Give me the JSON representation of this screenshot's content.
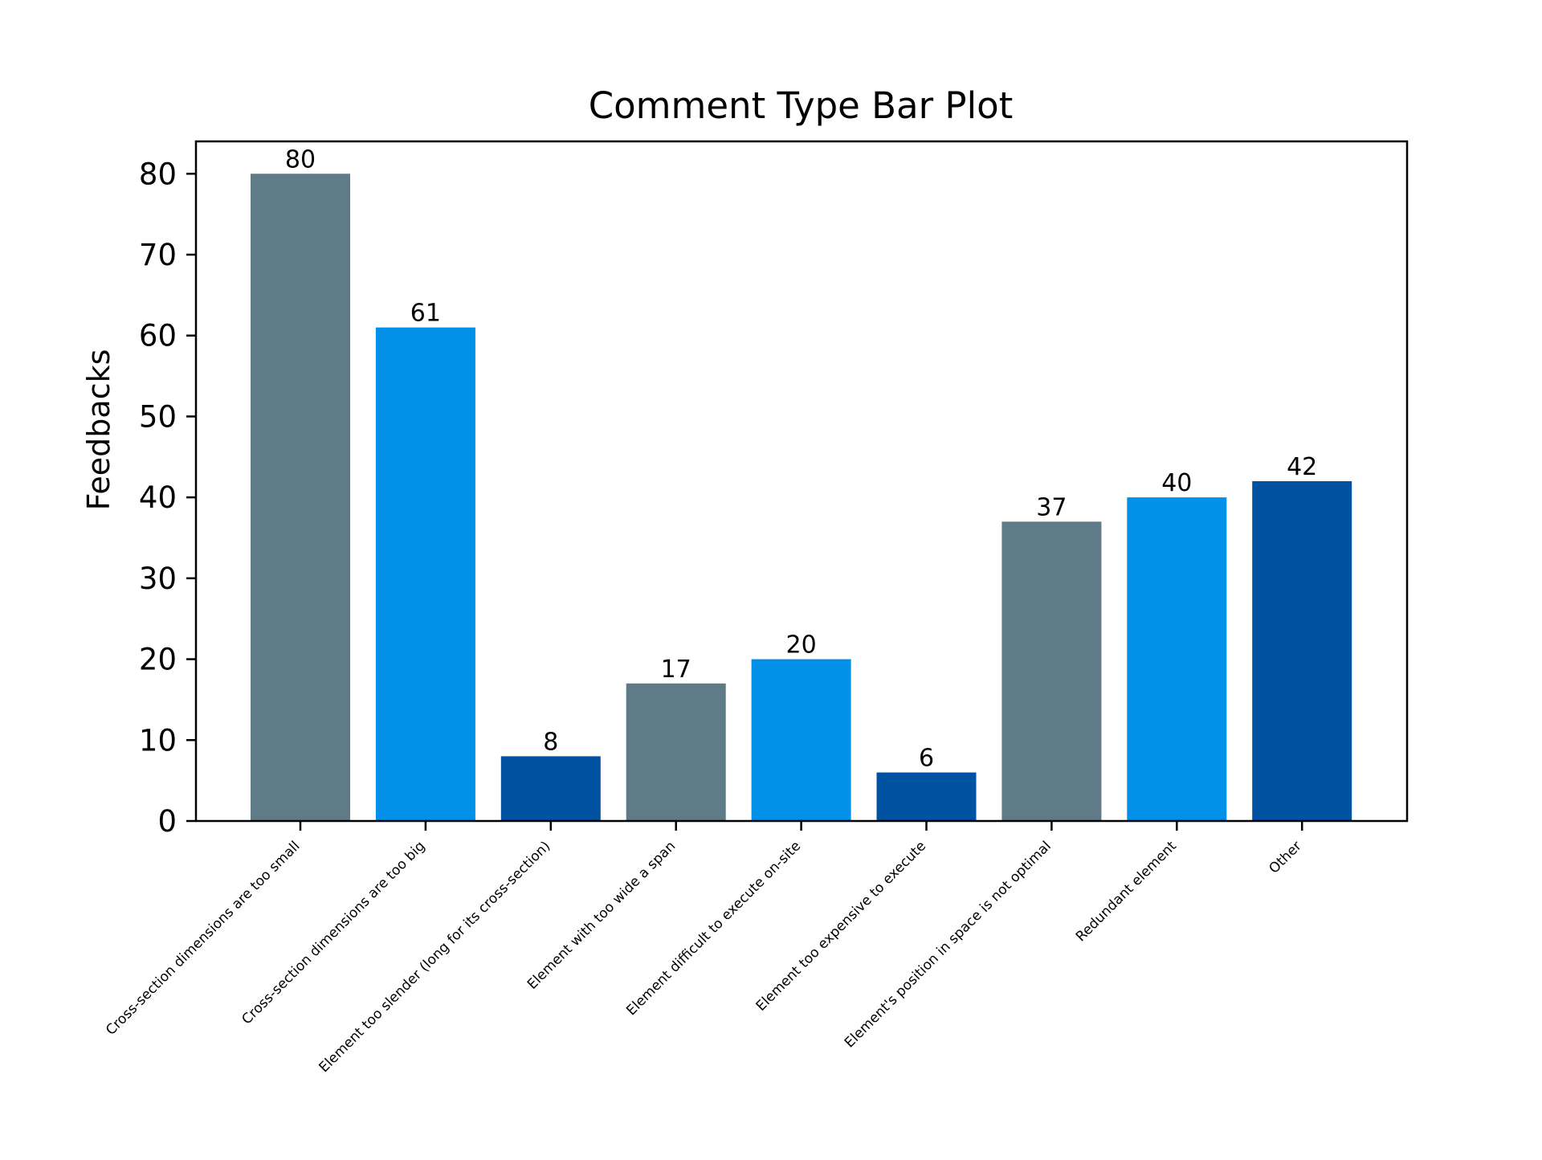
{
  "chart_data": {
    "type": "bar",
    "title": "Comment Type Bar Plot",
    "xlabel": "",
    "ylabel": "Feedbacks",
    "categories": [
      "Cross-section dimensions are too small",
      "Cross-section dimensions are too big",
      "Element too slender (long for its cross-section)",
      "Element with too wide a span",
      "Element difficult to execute on-site",
      "Element too expensive to execute",
      "Element's position in space is not optimal",
      "Redundant element",
      "Other"
    ],
    "values": [
      80,
      61,
      8,
      17,
      20,
      6,
      37,
      40,
      42
    ],
    "bar_colors": [
      "#607b88",
      "#0290e8",
      "#0153a1",
      "#607b88",
      "#0290e8",
      "#0153a1",
      "#607b88",
      "#0290e8",
      "#0153a1"
    ],
    "ylim": [
      0,
      84
    ],
    "yticks": [
      0,
      10,
      20,
      30,
      40,
      50,
      60,
      70,
      80
    ],
    "data_labels": true,
    "grid": false,
    "legend": "none"
  }
}
